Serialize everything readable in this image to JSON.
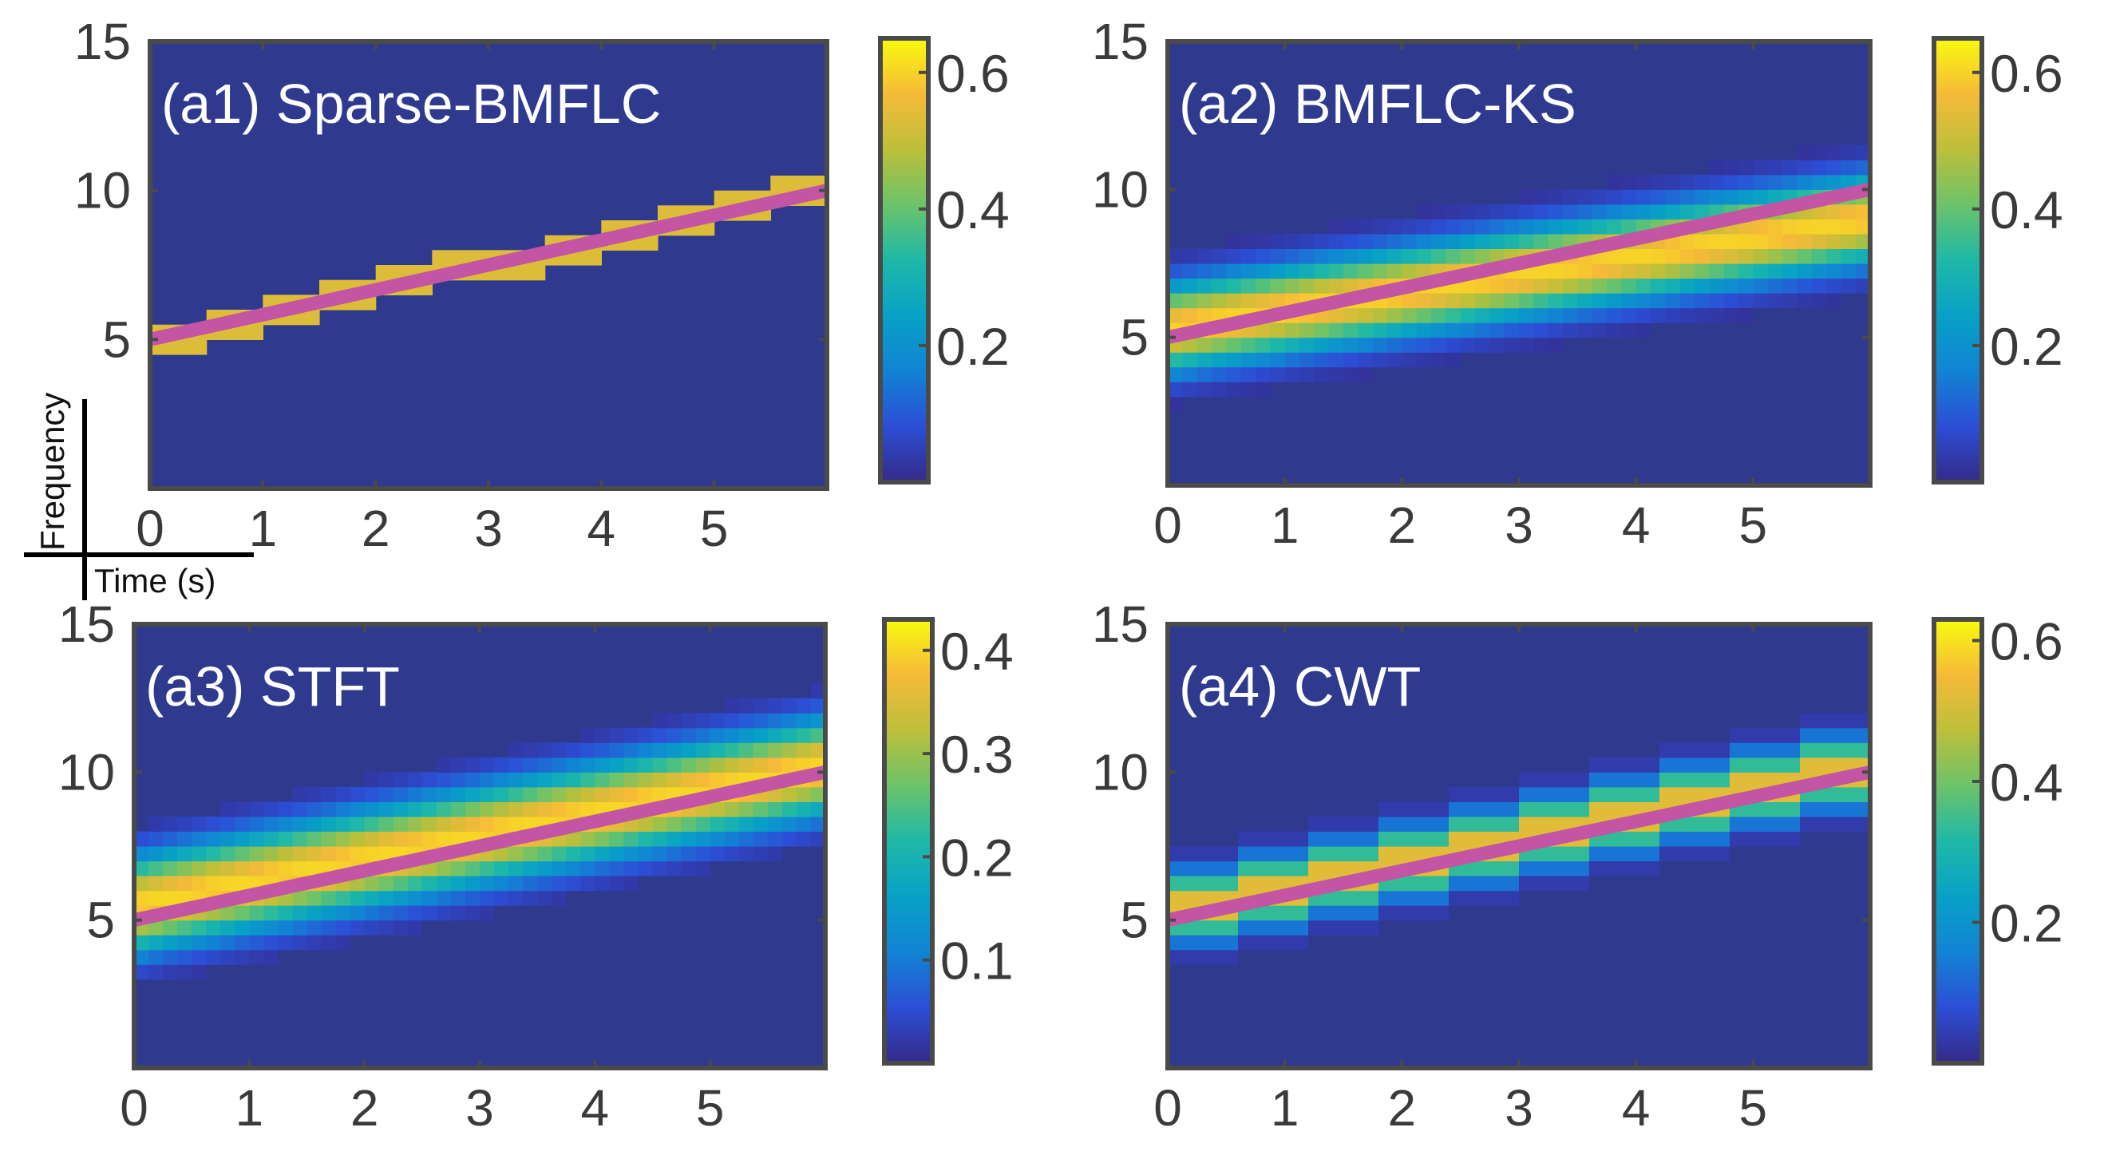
{
  "colors": {
    "background": "#2f3a8f",
    "axis": "#4a4a4a",
    "ridge_line": "#c454a4",
    "parula": [
      "#352a87",
      "#2c4ed6",
      "#1283d4",
      "#08a1c6",
      "#1fb8a8",
      "#6cc36a",
      "#bdbf3a",
      "#f6ba39",
      "#f9fb0e"
    ]
  },
  "legend": {
    "frequency_label": "Frequency",
    "time_label": "Time (s)"
  },
  "chart_data": [
    {
      "id": "a1",
      "type": "heatmap",
      "title": "(a1) Sparse-BMFLC",
      "xlabel": "Time (s)",
      "ylabel": "Frequency",
      "xlim": [
        0,
        6
      ],
      "ylim": [
        0,
        15
      ],
      "x_ticks": [
        0,
        1,
        2,
        3,
        4,
        5
      ],
      "y_ticks": [
        5,
        10,
        15
      ],
      "line": {
        "x": [
          0,
          6
        ],
        "y": [
          5,
          10
        ]
      },
      "ridge": {
        "f0": 5,
        "f1": 10,
        "peak": 0.62,
        "width": 0.45,
        "profile": "blocky"
      },
      "colorbar": {
        "min": 0,
        "max": 0.65,
        "ticks": [
          0.2,
          0.4,
          0.6
        ]
      }
    },
    {
      "id": "a2",
      "type": "heatmap",
      "title": "(a2) BMFLC-KS",
      "xlabel": "Time (s)",
      "ylabel": "Frequency",
      "xlim": [
        0,
        6
      ],
      "ylim": [
        0,
        15
      ],
      "x_ticks": [
        0,
        1,
        2,
        3,
        4,
        5
      ],
      "y_ticks": [
        5,
        10,
        15
      ],
      "line": {
        "x": [
          0,
          6
        ],
        "y": [
          5,
          10
        ]
      },
      "ridge": {
        "f0": 5.3,
        "f1": 9.0,
        "peak": 0.6,
        "width": 1.0,
        "profile": "smooth"
      },
      "colorbar": {
        "min": 0,
        "max": 0.65,
        "ticks": [
          0.2,
          0.4,
          0.6
        ]
      }
    },
    {
      "id": "a3",
      "type": "heatmap",
      "title": "(a3) STFT",
      "xlabel": "Time (s)",
      "ylabel": "Frequency",
      "xlim": [
        0,
        6
      ],
      "ylim": [
        0,
        15
      ],
      "x_ticks": [
        0,
        1,
        2,
        3,
        4,
        5
      ],
      "y_ticks": [
        5,
        10,
        15
      ],
      "line": {
        "x": [
          0,
          6
        ],
        "y": [
          5,
          10
        ]
      },
      "ridge": {
        "f0": 5.5,
        "f1": 10.2,
        "peak": 0.4,
        "width": 1.1,
        "profile": "smooth"
      },
      "colorbar": {
        "min": 0,
        "max": 0.43,
        "ticks": [
          0.1,
          0.2,
          0.3,
          0.4
        ]
      }
    },
    {
      "id": "a4",
      "type": "heatmap",
      "title": "(a4) CWT",
      "xlabel": "Time (s)",
      "ylabel": "Frequency",
      "xlim": [
        0,
        6
      ],
      "ylim": [
        0,
        15
      ],
      "x_ticks": [
        0,
        1,
        2,
        3,
        4,
        5
      ],
      "y_ticks": [
        5,
        10,
        15
      ],
      "line": {
        "x": [
          0,
          6
        ],
        "y": [
          5,
          10
        ]
      },
      "ridge": {
        "f0": 5.3,
        "f1": 10.3,
        "peak": 0.55,
        "width": 0.75,
        "profile": "stepped"
      },
      "colorbar": {
        "min": 0,
        "max": 0.63,
        "ticks": [
          0.2,
          0.4,
          0.6
        ]
      }
    }
  ]
}
